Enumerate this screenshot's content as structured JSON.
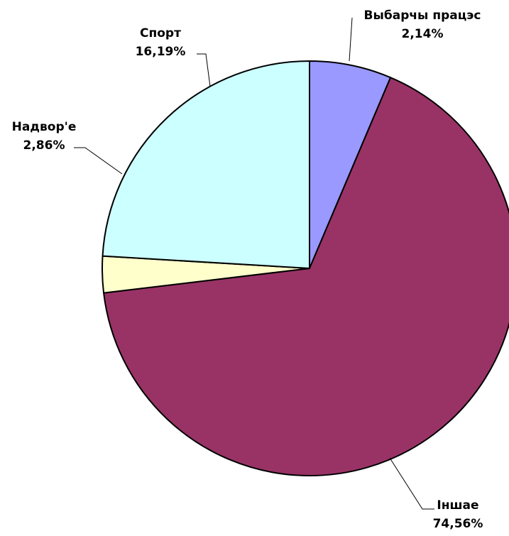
{
  "chart_data": {
    "type": "pie",
    "title": "",
    "categories": [
      "Выбарчы працэс",
      "Іншае",
      "Надвор'е",
      "Спорт"
    ],
    "values": [
      2.14,
      74.56,
      2.86,
      16.19
    ],
    "value_labels": [
      "2,14%",
      "74,56%",
      "2,86%",
      "16,19%"
    ],
    "colors": [
      "#9999FF",
      "#993366",
      "#FFFFCC",
      "#CCFFFF"
    ],
    "start_angle": "12 o'clock",
    "direction": "clockwise",
    "outline_color": "#000000",
    "legend": "none",
    "labels_outside_with_leader_lines": true
  }
}
